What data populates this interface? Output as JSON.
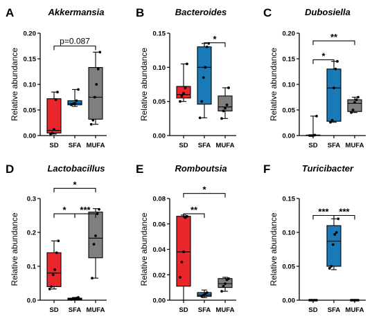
{
  "colors": {
    "SD": "#e8262c",
    "SFA": "#1a7ab8",
    "MUFA": "#7f7f7f"
  },
  "chart_data": [
    {
      "letter": "A",
      "title": "Akkermansia",
      "type": "box",
      "ylabel": "Relative abundance",
      "ylim": [
        0,
        0.2
      ],
      "yticks": [
        "0.00",
        "0.05",
        "0.10",
        "0.15",
        "0.20"
      ],
      "ytick_values": [
        0,
        0.05,
        0.1,
        0.15,
        0.2
      ],
      "categories": [
        "SD",
        "SFA",
        "MUFA"
      ],
      "boxes": [
        {
          "group": "SD",
          "min": 0.003,
          "q1": 0.005,
          "median": 0.01,
          "q3": 0.072,
          "max": 0.085,
          "points": [
            0.003,
            0.005,
            0.012,
            0.07,
            0.085
          ]
        },
        {
          "group": "SFA",
          "min": 0.057,
          "q1": 0.06,
          "median": 0.063,
          "q3": 0.068,
          "max": 0.09,
          "points": [
            0.06,
            0.062,
            0.063,
            0.068,
            0.09
          ]
        },
        {
          "group": "MUFA",
          "min": 0.022,
          "q1": 0.032,
          "median": 0.075,
          "q3": 0.133,
          "max": 0.163,
          "points": [
            0.022,
            0.03,
            0.075,
            0.1,
            0.13,
            0.163
          ]
        }
      ],
      "comparisons": [
        {
          "from": 0,
          "to": 2,
          "y": 0.175,
          "label": "p=0.087"
        }
      ]
    },
    {
      "letter": "B",
      "title": "Bacteroides",
      "type": "box",
      "ylabel": "Relative abundance",
      "ylim": [
        0,
        0.15
      ],
      "yticks": [
        "0.00",
        "0.05",
        "0.10",
        "0.15"
      ],
      "ytick_values": [
        0,
        0.05,
        0.1,
        0.15
      ],
      "categories": [
        "SD",
        "SFA",
        "MUFA"
      ],
      "boxes": [
        {
          "group": "SD",
          "min": 0.05,
          "q1": 0.055,
          "median": 0.06,
          "q3": 0.072,
          "max": 0.105,
          "points": [
            0.05,
            0.058,
            0.062,
            0.07,
            0.105
          ]
        },
        {
          "group": "SFA",
          "min": 0.026,
          "q1": 0.046,
          "median": 0.1,
          "q3": 0.13,
          "max": 0.135,
          "points": [
            0.026,
            0.05,
            0.085,
            0.1,
            0.13,
            0.135
          ]
        },
        {
          "group": "MUFA",
          "min": 0.025,
          "q1": 0.036,
          "median": 0.042,
          "q3": 0.058,
          "max": 0.07,
          "points": [
            0.025,
            0.036,
            0.04,
            0.045,
            0.07
          ]
        }
      ],
      "comparisons": [
        {
          "from": 1,
          "to": 2,
          "y": 0.136,
          "label": "*"
        }
      ]
    },
    {
      "letter": "C",
      "title": "Dubosiella",
      "type": "box",
      "ylabel": "Relative abundance",
      "ylim": [
        0,
        0.2
      ],
      "yticks": [
        "0.00",
        "0.05",
        "0.10",
        "0.15",
        "0.20"
      ],
      "ytick_values": [
        0,
        0.05,
        0.1,
        0.15,
        0.2
      ],
      "categories": [
        "SD",
        "SFA",
        "MUFA"
      ],
      "boxes": [
        {
          "group": "SD",
          "min": 0,
          "q1": 0,
          "median": 0,
          "q3": 0.001,
          "max": 0.038,
          "points": [
            0,
            0,
            0,
            0.001,
            0.038
          ]
        },
        {
          "group": "SFA",
          "min": 0.026,
          "q1": 0.028,
          "median": 0.093,
          "q3": 0.13,
          "max": 0.145,
          "points": [
            0.026,
            0.03,
            0.093,
            0.13,
            0.145
          ]
        },
        {
          "group": "MUFA",
          "min": 0.045,
          "q1": 0.047,
          "median": 0.063,
          "q3": 0.07,
          "max": 0.075,
          "points": [
            0.045,
            0.05,
            0.065,
            0.07,
            0.075
          ]
        }
      ],
      "comparisons": [
        {
          "from": 0,
          "to": 1,
          "y": 0.148,
          "label": "*"
        },
        {
          "from": 0,
          "to": 2,
          "y": 0.185,
          "label": "**"
        }
      ]
    },
    {
      "letter": "D",
      "title": "Lactobacillus",
      "type": "box",
      "ylabel": "Relative abundance",
      "ylim": [
        0,
        0.3
      ],
      "yticks": [
        "0.0",
        "0.1",
        "0.2",
        "0.3"
      ],
      "ytick_values": [
        0,
        0.1,
        0.2,
        0.3
      ],
      "categories": [
        "SD",
        "SFA",
        "MUFA"
      ],
      "boxes": [
        {
          "group": "SD",
          "min": 0.033,
          "q1": 0.04,
          "median": 0.08,
          "q3": 0.14,
          "max": 0.175,
          "points": [
            0.033,
            0.04,
            0.075,
            0.09,
            0.14,
            0.175
          ]
        },
        {
          "group": "SFA",
          "min": 0,
          "q1": 0.002,
          "median": 0.004,
          "q3": 0.006,
          "max": 0.008,
          "points": [
            0.002,
            0.003,
            0.004,
            0.006,
            0.008
          ]
        },
        {
          "group": "MUFA",
          "min": 0.065,
          "q1": 0.125,
          "median": 0.183,
          "q3": 0.26,
          "max": 0.27,
          "points": [
            0.065,
            0.165,
            0.19,
            0.255,
            0.268
          ]
        }
      ],
      "comparisons": [
        {
          "from": 0,
          "to": 1,
          "y": 0.255,
          "label": "*"
        },
        {
          "from": 1,
          "to": 2,
          "y": 0.255,
          "label": "***"
        },
        {
          "from": 0,
          "to": 2,
          "y": 0.33,
          "label": "*"
        }
      ]
    },
    {
      "letter": "E",
      "title": "Romboutsia",
      "type": "box",
      "ylabel": "Relative abundance",
      "ylim": [
        0,
        0.08
      ],
      "yticks": [
        "0.00",
        "0.02",
        "0.04",
        "0.06",
        "0.08"
      ],
      "ytick_values": [
        0,
        0.02,
        0.04,
        0.06,
        0.08
      ],
      "categories": [
        "SD",
        "SFA",
        "MUFA"
      ],
      "boxes": [
        {
          "group": "SD",
          "min": 0,
          "q1": 0.011,
          "median": 0.038,
          "q3": 0.066,
          "max": 0.067,
          "points": [
            0.018,
            0.03,
            0.038,
            0.065,
            0.066
          ]
        },
        {
          "group": "SFA",
          "min": 0.002,
          "q1": 0.003,
          "median": 0.004,
          "q3": 0.006,
          "max": 0.008,
          "points": [
            0.003,
            0.004,
            0.005,
            0.006
          ]
        },
        {
          "group": "MUFA",
          "min": 0.007,
          "q1": 0.01,
          "median": 0.013,
          "q3": 0.017,
          "max": 0.018,
          "points": [
            0.007,
            0.011,
            0.013,
            0.016,
            0.017
          ]
        }
      ],
      "comparisons": [
        {
          "from": 0,
          "to": 1,
          "y": 0.068,
          "label": "**"
        },
        {
          "from": 0,
          "to": 2,
          "y": 0.084,
          "label": "*"
        }
      ]
    },
    {
      "letter": "F",
      "title": "Turicibacter",
      "type": "box",
      "ylabel": "Relative abundance",
      "ylim": [
        0,
        0.15
      ],
      "yticks": [
        "0.00",
        "0.05",
        "0.10",
        "0.15"
      ],
      "ytick_values": [
        0,
        0.05,
        0.1,
        0.15
      ],
      "categories": [
        "SD",
        "SFA",
        "MUFA"
      ],
      "boxes": [
        {
          "group": "SD",
          "min": 0,
          "q1": 0,
          "median": 0,
          "q3": 0,
          "max": 0,
          "points": [
            0,
            0,
            0,
            0,
            0
          ]
        },
        {
          "group": "SFA",
          "min": 0.045,
          "q1": 0.05,
          "median": 0.087,
          "q3": 0.11,
          "max": 0.12,
          "points": [
            0.047,
            0.05,
            0.082,
            0.097,
            0.1,
            0.12
          ]
        },
        {
          "group": "MUFA",
          "min": 0,
          "q1": 0,
          "median": 0,
          "q3": 0,
          "max": 0,
          "points": [
            0,
            0,
            0,
            0,
            0
          ]
        }
      ],
      "comparisons": [
        {
          "from": 0,
          "to": 1,
          "y": 0.125,
          "label": "***"
        },
        {
          "from": 1,
          "to": 2,
          "y": 0.125,
          "label": "***"
        }
      ]
    }
  ]
}
